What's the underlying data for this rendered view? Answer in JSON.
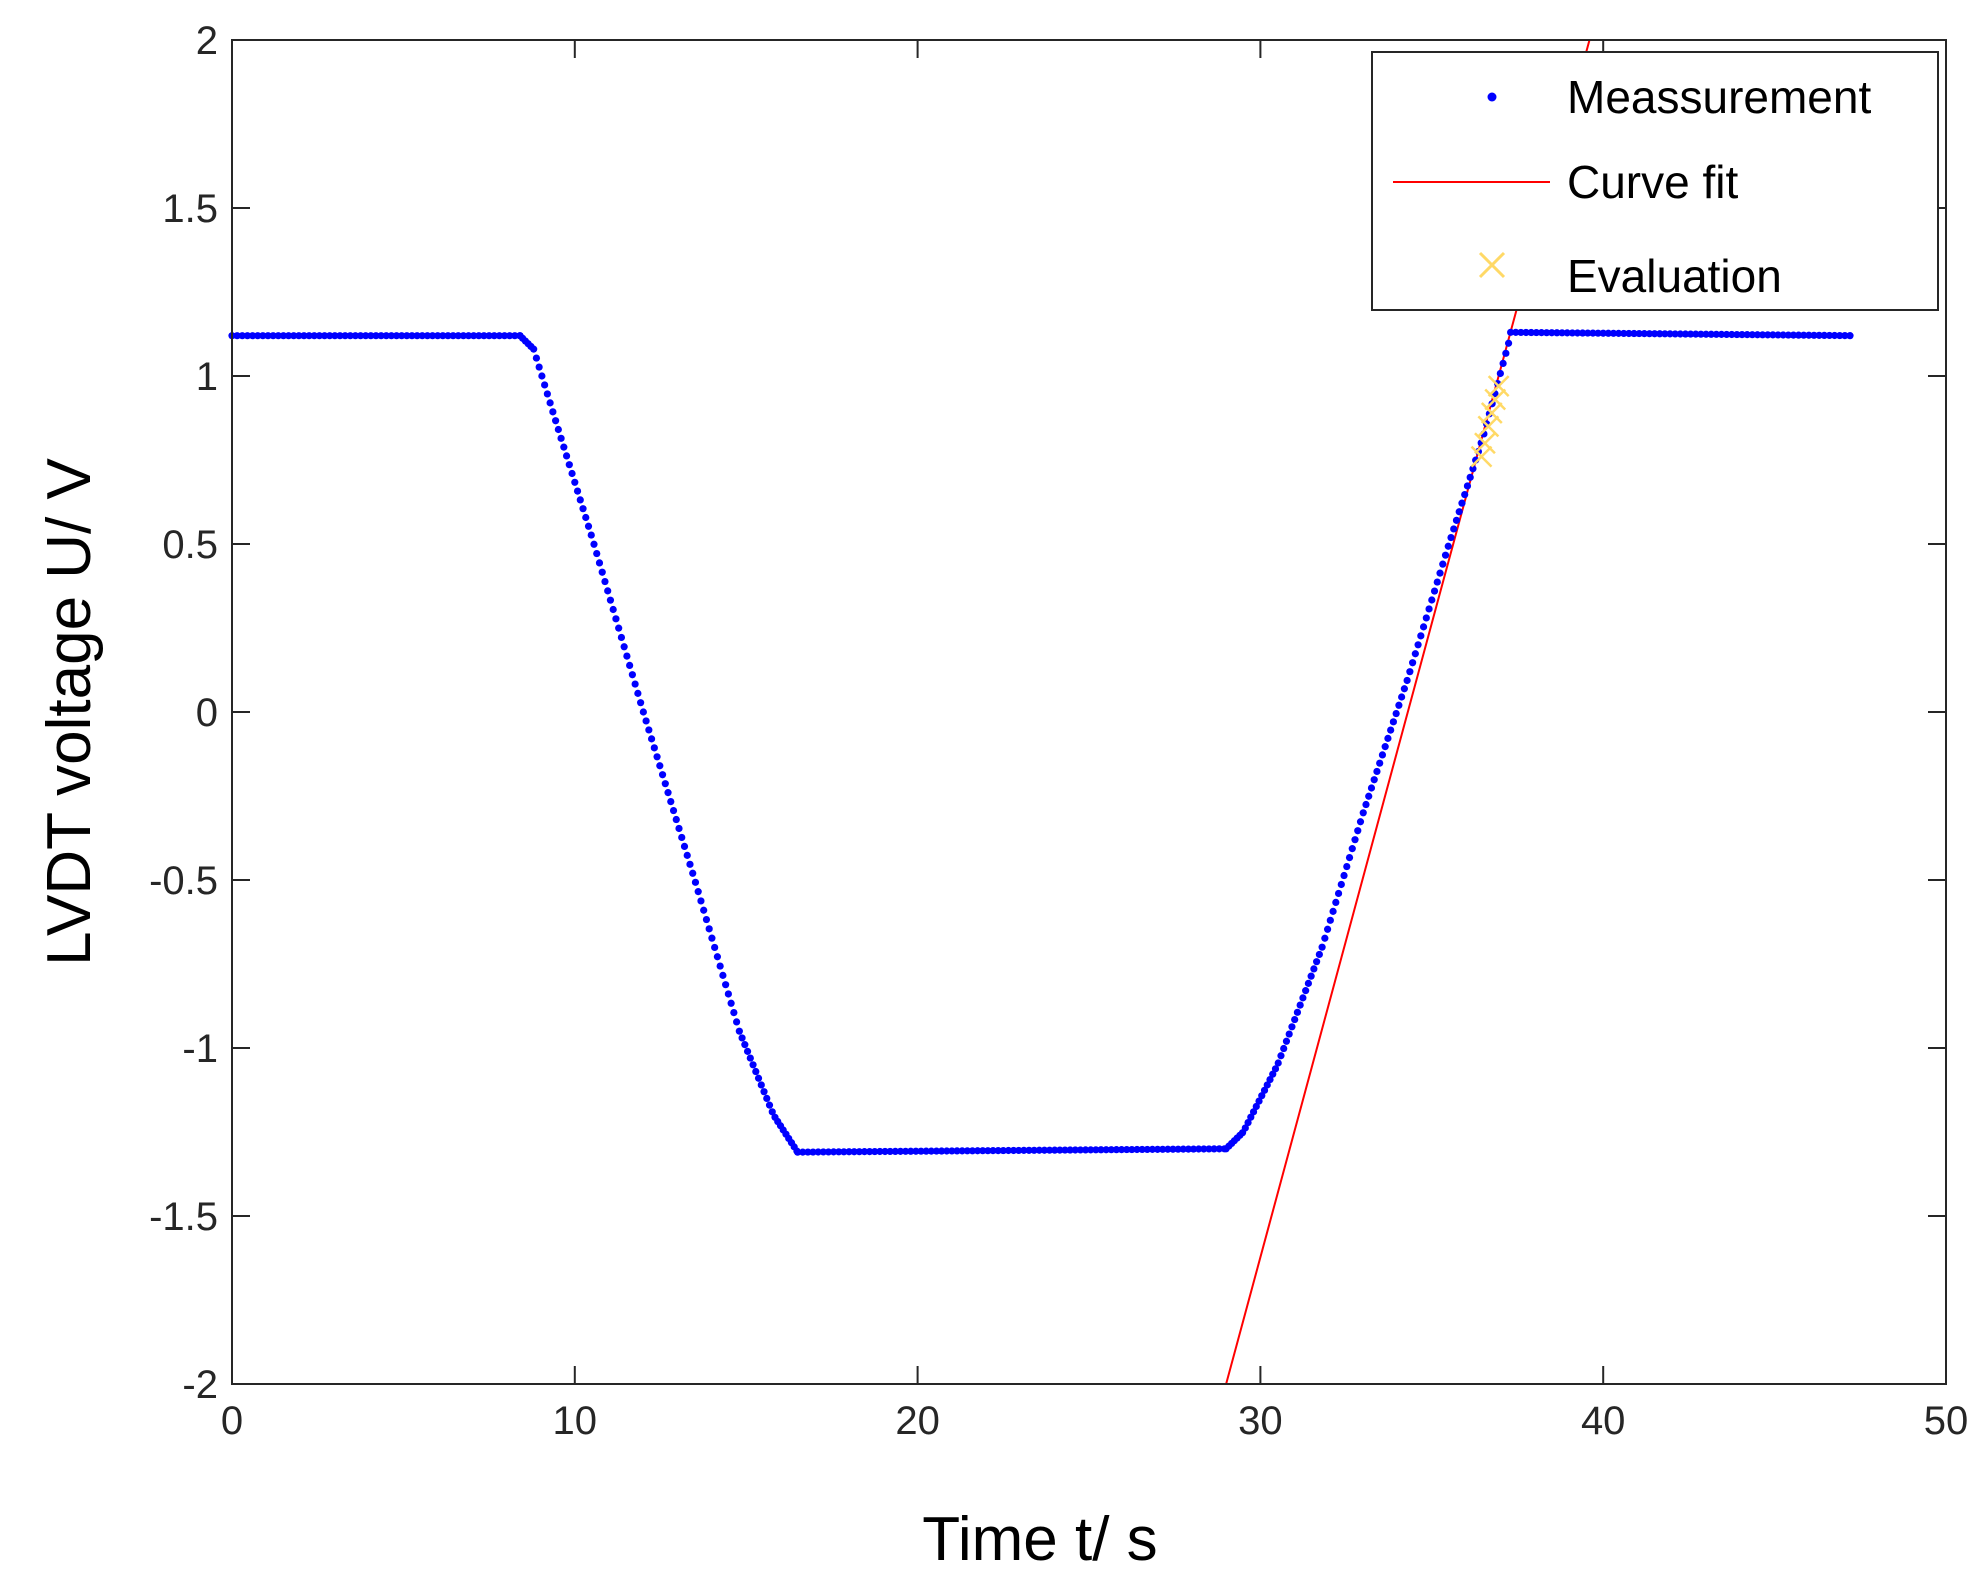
{
  "chart_data": {
    "type": "scatter",
    "xlabel": "Time t/ s",
    "ylabel": "LVDT voltage U/ V",
    "xlim": [
      0,
      50
    ],
    "ylim": [
      -2,
      2
    ],
    "xticks": [
      0,
      10,
      20,
      30,
      40,
      50
    ],
    "yticks": [
      -2,
      -1.5,
      -1,
      -0.5,
      0,
      0.5,
      1,
      1.5,
      2
    ],
    "xtick_labels": [
      "0",
      "10",
      "20",
      "30",
      "40",
      "50"
    ],
    "ytick_labels": [
      "-2",
      "-1.5",
      "-1",
      "-0.5",
      "0",
      "0.5",
      "1",
      "1.5",
      "2"
    ],
    "grid": false,
    "legend_position": "top-right",
    "legend": [
      {
        "name": "Meassurement",
        "marker": "dot",
        "color": "#0000ff"
      },
      {
        "name": "Curve fit",
        "marker": "line",
        "color": "#ff0000"
      },
      {
        "name": "Evaluation",
        "marker": "x",
        "color": "#ffd966"
      }
    ],
    "series": [
      {
        "name": "Meassurement",
        "style": "dots",
        "color": "#0000ff",
        "segments": [
          {
            "x": [
              0,
              8.4
            ],
            "y": [
              1.12,
              1.12
            ],
            "dx": 0.15
          },
          {
            "x": [
              8.4,
              8.8,
              9.4,
              10.5,
              12.0,
              13.5,
              14.8,
              15.8,
              16.5
            ],
            "y": [
              1.12,
              1.08,
              0.88,
              0.52,
              0.0,
              -0.5,
              -0.95,
              -1.2,
              -1.31
            ],
            "dx": 0.08
          },
          {
            "x": [
              16.5,
              29.0
            ],
            "y": [
              -1.31,
              -1.3
            ],
            "dx": 0.15
          },
          {
            "x": [
              29.0,
              29.5,
              30.5,
              31.8,
              33.0,
              34.3,
              35.5,
              36.5,
              37.3
            ],
            "y": [
              -1.3,
              -1.25,
              -1.05,
              -0.7,
              -0.3,
              0.1,
              0.5,
              0.82,
              1.12
            ],
            "dx": 0.08
          },
          {
            "x": [
              37.3,
              47.3
            ],
            "y": [
              1.13,
              1.12
            ],
            "dx": 0.15
          }
        ]
      },
      {
        "name": "Curve fit",
        "style": "line",
        "color": "#ff0000",
        "x": [
          29.0,
          39.6
        ],
        "y": [
          -2.0,
          2.0
        ]
      },
      {
        "name": "Evaluation",
        "style": "x",
        "color": "#ffd966",
        "x": [
          36.45,
          36.55,
          36.65,
          36.75,
          36.85,
          36.95
        ],
        "y": [
          0.76,
          0.8,
          0.85,
          0.89,
          0.93,
          0.97
        ]
      }
    ]
  }
}
